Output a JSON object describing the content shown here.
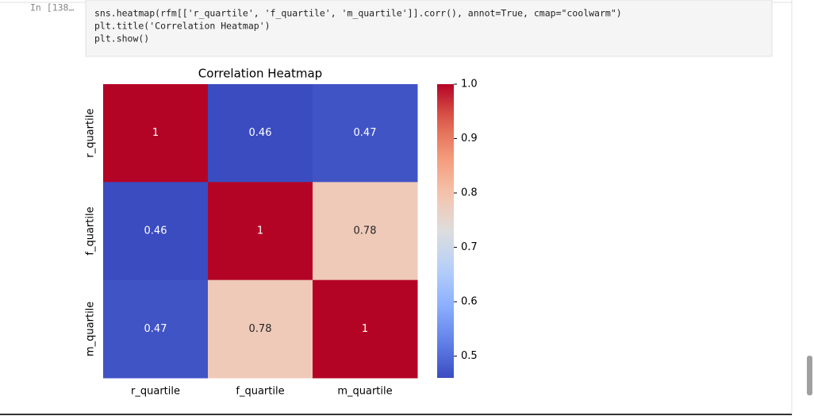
{
  "cell": {
    "prompt": "In [138…",
    "code": [
      "sns.heatmap(rfm[['r_quartile', 'f_quartile', 'm_quartile']].corr(), annot=True, cmap=\"coolwarm\")",
      "plt.title('Correlation Heatmap')",
      "plt.show()"
    ]
  },
  "chart_data": {
    "type": "heatmap",
    "title": "Correlation Heatmap",
    "x": [
      "r_quartile",
      "f_quartile",
      "m_quartile"
    ],
    "y": [
      "r_quartile",
      "f_quartile",
      "m_quartile"
    ],
    "values": [
      [
        1,
        0.46,
        0.47
      ],
      [
        0.46,
        1,
        0.78
      ],
      [
        0.47,
        0.78,
        1
      ]
    ],
    "colormap": "coolwarm",
    "clim": [
      0.46,
      1
    ],
    "cticks": [
      0.5,
      0.6,
      0.7,
      0.8,
      0.9,
      {
        "value": 1,
        "label": "1.0"
      }
    ]
  }
}
